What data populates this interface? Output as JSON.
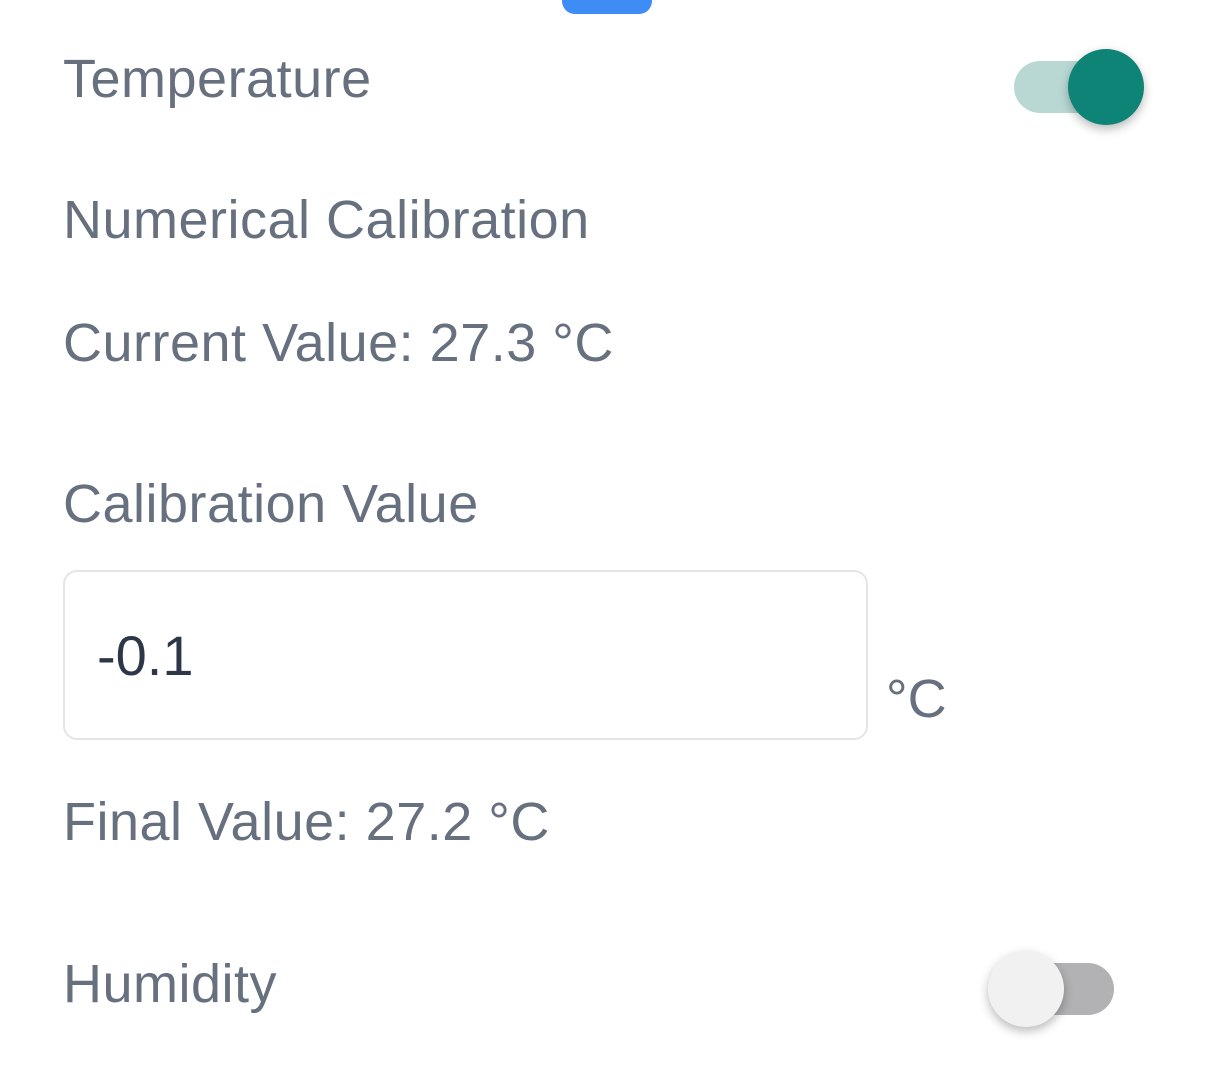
{
  "top_indicator": {
    "present": true
  },
  "temperature": {
    "label": "Temperature",
    "toggle_state": "on"
  },
  "calibration": {
    "title": "Numerical Calibration",
    "current": {
      "text": "Current Value: 27.3 °C",
      "value": 27.3,
      "unit": "°C"
    },
    "input": {
      "label": "Calibration Value",
      "value": "-0.1",
      "unit": "°C"
    },
    "final": {
      "text": "Final Value: 27.2 °C",
      "value": 27.2,
      "unit": "°C"
    }
  },
  "humidity": {
    "label": "Humidity",
    "toggle_state": "off"
  },
  "colors": {
    "accent-blue": "#3e8df7",
    "label-gray": "#67707e",
    "input-text": "#2d3748",
    "input-border": "#e3e5e9",
    "toggle-on-knob": "#0d8476",
    "toggle-on-track": "#b9d8d4",
    "toggle-off-knob": "#f1f1f2",
    "toggle-off-track": "#b2b2b4"
  }
}
